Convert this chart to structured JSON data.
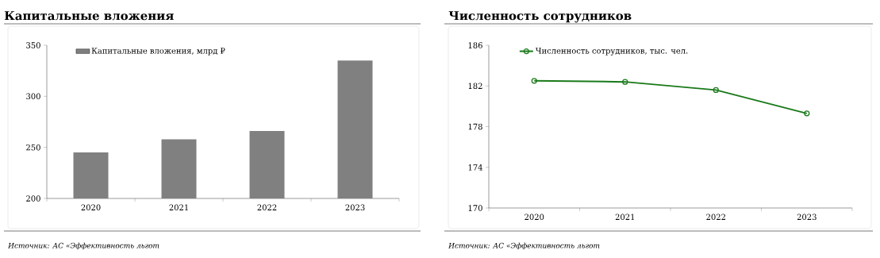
{
  "chart_data": [
    {
      "type": "bar",
      "title": "Капитальные вложения",
      "categories": [
        "2020",
        "2021",
        "2022",
        "2023"
      ],
      "series": [
        {
          "name": "Капитальные вложения, млрд ₽",
          "color": "#808080",
          "values": [
            245,
            258,
            266,
            335
          ]
        }
      ],
      "ylim": [
        200,
        350
      ],
      "yticks": [
        200,
        250,
        300,
        350
      ],
      "legend": "top left",
      "annotations": [
        "Источник: АС «Эффективность льгот"
      ]
    },
    {
      "type": "line",
      "title": "Численность сотрудников",
      "categories": [
        "2020",
        "2021",
        "2022",
        "2023"
      ],
      "series": [
        {
          "name": "Численность сотрудников, тыс. чел.",
          "color": "#1a7a1a",
          "values": [
            182.5,
            182.4,
            181.6,
            179.3
          ]
        }
      ],
      "ylim": [
        170,
        186
      ],
      "yticks": [
        170,
        174,
        178,
        182,
        186
      ],
      "legend": "top left",
      "marker": "circle",
      "annotations": [
        "Источник: АС «Эффективность льгот"
      ]
    }
  ]
}
